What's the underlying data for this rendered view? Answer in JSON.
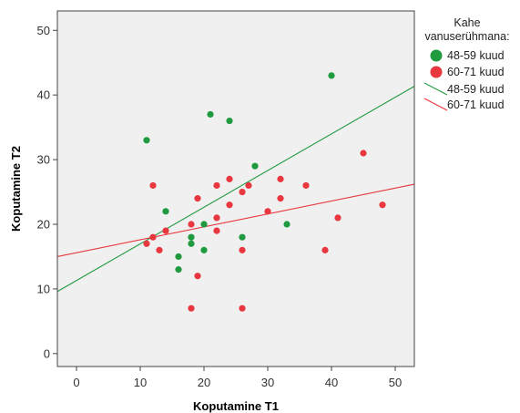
{
  "chart_data": {
    "type": "scatter",
    "xlabel": "Koputamine T1",
    "ylabel": "Koputamine T2",
    "xlim": [
      -3,
      53
    ],
    "ylim": [
      -2,
      53
    ],
    "xticks": [
      0,
      10,
      20,
      30,
      40,
      50
    ],
    "yticks": [
      0,
      10,
      20,
      30,
      40,
      50
    ],
    "grid": false,
    "legend": {
      "title_lines": [
        "Kahe",
        "vanuserühmana:"
      ],
      "position": "right"
    },
    "series": [
      {
        "name": "48-59 kuud",
        "color": "#1f9a3f",
        "points": [
          [
            11,
            33
          ],
          [
            14,
            22
          ],
          [
            16,
            15
          ],
          [
            16,
            13
          ],
          [
            18,
            18
          ],
          [
            18,
            17
          ],
          [
            20,
            20
          ],
          [
            20,
            16
          ],
          [
            21,
            37
          ],
          [
            24,
            36
          ],
          [
            26,
            18
          ],
          [
            28,
            29
          ],
          [
            33,
            20
          ],
          [
            40,
            43
          ]
        ],
        "fit": {
          "slope": 0.567,
          "intercept": 11.3
        }
      },
      {
        "name": "60-71 kuud",
        "color": "#e8373e",
        "points": [
          [
            11,
            17
          ],
          [
            12,
            26
          ],
          [
            12,
            18
          ],
          [
            13,
            16
          ],
          [
            14,
            19
          ],
          [
            18,
            20
          ],
          [
            18,
            7
          ],
          [
            19,
            24
          ],
          [
            19,
            12
          ],
          [
            22,
            26
          ],
          [
            22,
            21
          ],
          [
            22,
            19
          ],
          [
            24,
            27
          ],
          [
            24,
            23
          ],
          [
            26,
            25
          ],
          [
            26,
            16
          ],
          [
            26,
            7
          ],
          [
            27,
            26
          ],
          [
            30,
            22
          ],
          [
            32,
            27
          ],
          [
            32,
            24
          ],
          [
            36,
            26
          ],
          [
            39,
            16
          ],
          [
            41,
            21
          ],
          [
            45,
            31
          ],
          [
            48,
            23
          ]
        ],
        "fit": {
          "slope": 0.2,
          "intercept": 15.6
        }
      }
    ]
  },
  "legend_items": [
    {
      "label": "48-59 kuud",
      "kind": "marker",
      "color": "#1f9a3f"
    },
    {
      "label": "60-71 kuud",
      "kind": "marker",
      "color": "#e8373e"
    },
    {
      "label": "48-59 kuud",
      "kind": "line",
      "color": "#1f9a3f"
    },
    {
      "label": "60-71 kuud",
      "kind": "line",
      "color": "#e8373e"
    }
  ]
}
